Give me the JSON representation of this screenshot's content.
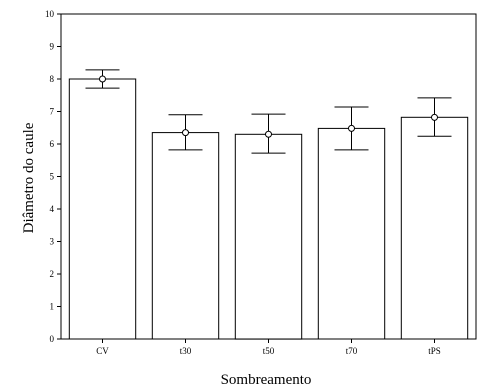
{
  "chart_data": {
    "type": "bar",
    "categories": [
      "CV",
      "t30",
      "t50",
      "t70",
      "tPS"
    ],
    "values": [
      8.0,
      6.35,
      6.3,
      6.48,
      6.82
    ],
    "error_low": [
      7.72,
      5.82,
      5.72,
      5.82,
      6.24
    ],
    "error_high": [
      8.28,
      6.9,
      6.92,
      7.14,
      7.42
    ],
    "xlabel": "Sombreamento",
    "ylabel": "Diâmetro do caule",
    "ylim": [
      0,
      10
    ],
    "yticks": [
      0,
      1,
      2,
      3,
      4,
      5,
      6,
      7,
      8,
      9,
      10
    ],
    "grid": false,
    "bar_color": "#ffffff",
    "line_color": "#000000"
  }
}
